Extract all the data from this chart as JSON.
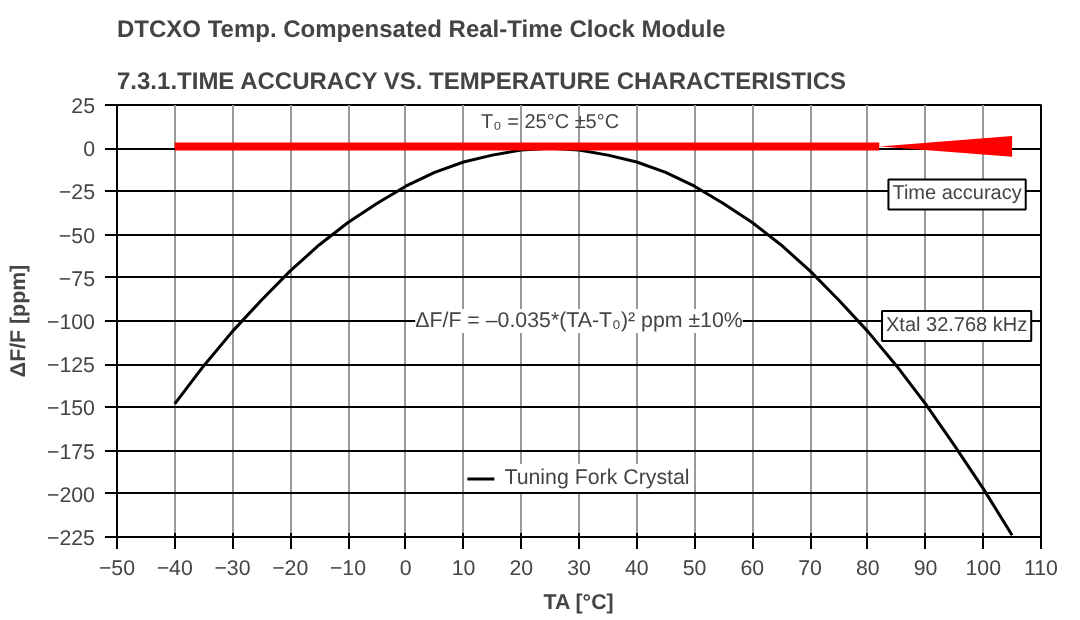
{
  "chart_data": {
    "type": "line",
    "title": "7.3.1.TIME ACCURACY VS. TEMPERATURE CHARACTERISTICS",
    "subtitle": "DTCXO Temp. Compensated Real-Time Clock Module",
    "xlabel": "TA [°C]",
    "ylabel": "ΔF/F [ppm]",
    "xlim": [
      -50,
      110
    ],
    "xticks": [
      -50,
      -40,
      -30,
      -20,
      -10,
      0,
      10,
      20,
      30,
      40,
      50,
      60,
      70,
      80,
      90,
      100,
      110
    ],
    "ylim": [
      -225,
      25
    ],
    "yticks": [
      -225,
      -200,
      -175,
      -150,
      -125,
      -100,
      -75,
      -50,
      -25,
      0,
      25
    ],
    "grid": true,
    "legend": "bottom",
    "marker": "none",
    "line_style": "solid",
    "series": [
      {
        "name": "Tuning Fork Crystal",
        "color": "#000000",
        "x": [
          -40,
          -35,
          -30,
          -25,
          -20,
          -15,
          -10,
          -5,
          0,
          5,
          10,
          15,
          20,
          25,
          30,
          35,
          40,
          45,
          50,
          55,
          60,
          65,
          70,
          75,
          80,
          85,
          90,
          95,
          100,
          105
        ],
        "values": [
          -148,
          -126,
          -106,
          -88,
          -71,
          -56,
          -43,
          -32,
          -22,
          -14,
          -8,
          -4,
          -1,
          0,
          -1,
          -4,
          -8,
          -14,
          -22,
          -32,
          -43,
          -56,
          -71,
          -88,
          -106,
          -126,
          -148,
          -172,
          -197,
          -224
        ]
      },
      {
        "color": "#ff0000",
        "x": [
          -40,
          82,
          105
        ],
        "values": [
          1,
          1,
          null
        ],
        "lower": [
          null,
          1,
          -5
        ],
        "upper": [
          null,
          1,
          7
        ]
      }
    ],
    "annotations": [
      {
        "text": "T₀ = 25°C ±5°C",
        "x": 25,
        "y": 1
      },
      "ΔF/F = –0.035*(TA-T₀)² ppm ±10%",
      {
        "text": "Time accuracy",
        "x": 83,
        "y": 1
      },
      {
        "text": "Xtal 32.768 kHz",
        "x": 85,
        "y": -126
      }
    ]
  }
}
